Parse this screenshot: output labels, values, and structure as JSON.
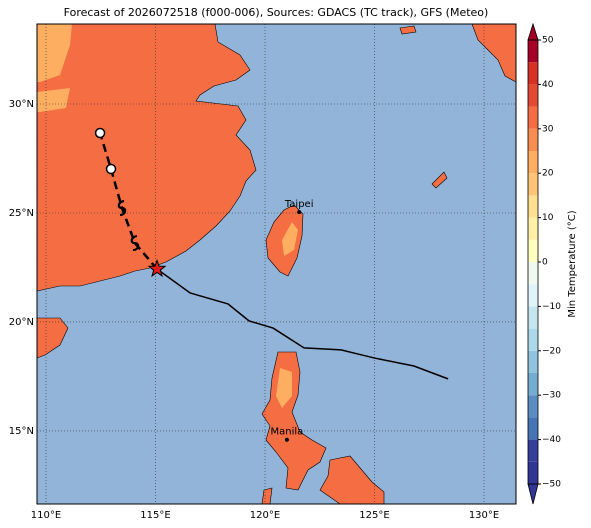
{
  "map": {
    "title": "Forecast of 2026072518 (f000-006), Sources: GDACS (TC track), GFS (Meteo)",
    "extent": {
      "lon": [
        109.59,
        131.46
      ],
      "lat": [
        11.65,
        33.67
      ]
    },
    "lon_ticks": [
      {
        "value": 110,
        "label": "110°E"
      },
      {
        "value": 115,
        "label": "115°E"
      },
      {
        "value": 120,
        "label": "120°E"
      },
      {
        "value": 125,
        "label": "125°E"
      },
      {
        "value": 130,
        "label": "130°E"
      }
    ],
    "lat_ticks": [
      {
        "value": 15,
        "label": "15°N"
      },
      {
        "value": 20,
        "label": "20°N"
      },
      {
        "value": 25,
        "label": "25°N"
      },
      {
        "value": 30,
        "label": "30°N"
      }
    ],
    "colorbar": {
      "label": "Min Temperature (°C)",
      "range": [
        -50,
        50
      ],
      "ticks": [
        {
          "value": -50,
          "label": "−50"
        },
        {
          "value": -40,
          "label": "−40"
        },
        {
          "value": -30,
          "label": "−30"
        },
        {
          "value": -20,
          "label": "−20"
        },
        {
          "value": -10,
          "label": "−10"
        },
        0,
        10,
        20,
        30,
        40,
        50
      ],
      "colors": [
        "#313695",
        "#353f99",
        "#4575b4",
        "#5b8dc0",
        "#74add1",
        "#90c3dd",
        "#abd9e9",
        "#c6e6ef",
        "#e0f3f8",
        "#f0f9f0",
        "#ffffbf",
        "#fff0a8",
        "#fee090",
        "#fdc476",
        "#fdae61",
        "#f88d52",
        "#f46d43",
        "#e34a33",
        "#d73027",
        "#a50026"
      ]
    },
    "observed_track": {
      "lon": [
        115.07,
        116.58,
        118.31,
        119.27,
        120.37,
        121.78,
        123.47,
        124.98,
        126.8,
        128.36
      ],
      "lat": [
        22.43,
        21.33,
        20.83,
        20.05,
        19.72,
        18.81,
        18.72,
        18.35,
        17.98,
        17.39
      ]
    },
    "forecast_track": {
      "lon": [
        115.07,
        114.06,
        113.47,
        112.97,
        112.47
      ],
      "lat": [
        22.43,
        23.62,
        25.23,
        27.02,
        28.67
      ]
    },
    "cities": [
      {
        "name": "Taipei",
        "lon": 121.56,
        "lat": 25.04
      },
      {
        "name": "Manila",
        "lon": 121.0,
        "lat": 14.6
      }
    ]
  }
}
